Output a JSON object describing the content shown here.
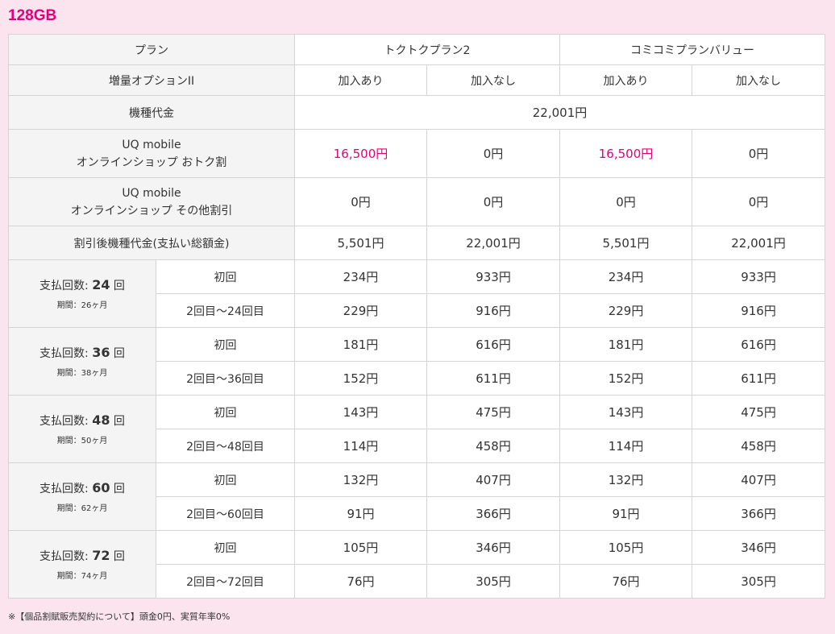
{
  "title": "128GB",
  "header": {
    "plan_label": "プラン",
    "plan1": "トクトクプラン2",
    "plan2": "コミコミプランバリュー",
    "option_label": "増量オプションII",
    "with_option": "加入あり",
    "without_option": "加入なし"
  },
  "device_price": {
    "label": "機種代金",
    "value": "22,001円"
  },
  "online_discount": {
    "label_line1": "UQ mobile",
    "label_line2": "オンラインショップ おトク割",
    "values": [
      "16,500円",
      "0円",
      "16,500円",
      "0円"
    ]
  },
  "other_discount": {
    "label_line1": "UQ mobile",
    "label_line2": "オンラインショップ その他割引",
    "values": [
      "0円",
      "0円",
      "0円",
      "0円"
    ]
  },
  "after_discount": {
    "label": "割引後機種代金(支払い総額金)",
    "values": [
      "5,501円",
      "22,001円",
      "5,501円",
      "22,001円"
    ]
  },
  "installments": [
    {
      "prefix": "支払回数: ",
      "count": "24",
      "suffix": " 回",
      "period": "期間：26ヶ月",
      "first_label": "初回",
      "rest_label": "2回目〜24回目",
      "first": [
        "234円",
        "933円",
        "234円",
        "933円"
      ],
      "rest": [
        "229円",
        "916円",
        "229円",
        "916円"
      ]
    },
    {
      "prefix": "支払回数: ",
      "count": "36",
      "suffix": " 回",
      "period": "期間：38ヶ月",
      "first_label": "初回",
      "rest_label": "2回目〜36回目",
      "first": [
        "181円",
        "616円",
        "181円",
        "616円"
      ],
      "rest": [
        "152円",
        "611円",
        "152円",
        "611円"
      ]
    },
    {
      "prefix": "支払回数: ",
      "count": "48",
      "suffix": " 回",
      "period": "期間：50ヶ月",
      "first_label": "初回",
      "rest_label": "2回目〜48回目",
      "first": [
        "143円",
        "475円",
        "143円",
        "475円"
      ],
      "rest": [
        "114円",
        "458円",
        "114円",
        "458円"
      ]
    },
    {
      "prefix": "支払回数: ",
      "count": "60",
      "suffix": " 回",
      "period": "期間：62ヶ月",
      "first_label": "初回",
      "rest_label": "2回目〜60回目",
      "first": [
        "132円",
        "407円",
        "132円",
        "407円"
      ],
      "rest": [
        "91円",
        "366円",
        "91円",
        "366円"
      ]
    },
    {
      "prefix": "支払回数: ",
      "count": "72",
      "suffix": " 回",
      "period": "期間：74ヶ月",
      "first_label": "初回",
      "rest_label": "2回目〜72回目",
      "first": [
        "105円",
        "346円",
        "105円",
        "346円"
      ],
      "rest": [
        "76円",
        "305円",
        "76円",
        "305円"
      ]
    }
  ],
  "footnote": "※【個品割賦販売契約について】頭金0円、実質年率0%"
}
